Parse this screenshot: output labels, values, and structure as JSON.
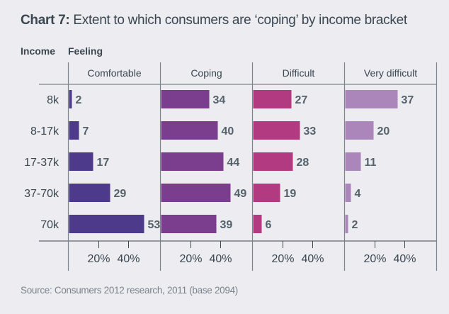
{
  "title_bold": "Chart 7:",
  "title_rest": " Extent to which consumers are ‘coping’ by income bracket",
  "income_header": "Income",
  "feeling_header": "Feeling",
  "source": "Source: Consumers 2012 research, 2011 (base 2094)",
  "chart_data": {
    "type": "bar",
    "orientation": "horizontal",
    "title": "Chart 7: Extent to which consumers are ‘coping’ by income bracket",
    "xlabel": "",
    "ylabel": "Income",
    "categories": [
      "8k",
      "8-17k",
      "17-37k",
      "37-70k",
      "70k"
    ],
    "series": [
      {
        "name": "Comfortable",
        "color": "#4e3a8a",
        "values": [
          2,
          7,
          17,
          29,
          53
        ]
      },
      {
        "name": "Coping",
        "color": "#7b3d8d",
        "values": [
          34,
          40,
          44,
          49,
          39
        ]
      },
      {
        "name": "Difficult",
        "color": "#b23a80",
        "values": [
          27,
          33,
          28,
          19,
          6
        ]
      },
      {
        "name": "Very difficult",
        "color": "#ab86bb",
        "values": [
          37,
          20,
          11,
          4,
          2
        ]
      }
    ],
    "x_ticks": [
      "20%",
      "40%"
    ],
    "x_tick_values": [
      20,
      40
    ],
    "xlim": [
      0,
      60
    ],
    "grid": false,
    "legend": "panel headers"
  }
}
